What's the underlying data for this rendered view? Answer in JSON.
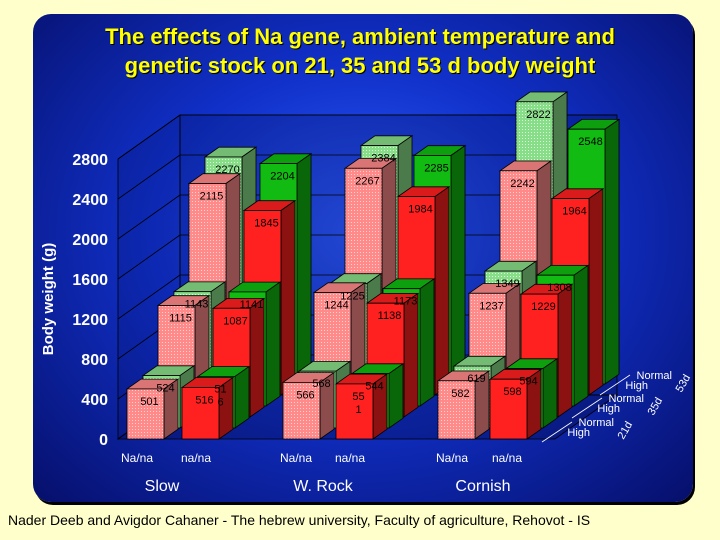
{
  "title_line1": "The effects of Na gene, ambient temperature and",
  "title_line2": "genetic stock on 21, 35 and 53 d body weight",
  "footer": "Nader Deeb and Avigdor Cahaner - The hebrew university, Faculty of agriculture, Rehovot - IS",
  "colors": {
    "background": "#ffffcc",
    "panel": "#1030c8",
    "title": "#ffff00",
    "axis_text": "#ffffff",
    "red_bar": "#ff2020",
    "pink_bar": "#ff8a8a",
    "green_bar": "#11bb11",
    "light_green_bar": "#88dd88"
  },
  "chart_data": {
    "type": "bar",
    "ylabel": "Body weight (g)",
    "ylim": [
      0,
      2800
    ],
    "yticks": [
      "0",
      "400",
      "800",
      "1200",
      "1600",
      "2000",
      "2400",
      "2800"
    ],
    "groups": [
      {
        "name": "Slow",
        "subgroups": [
          "Na/na",
          "na/na"
        ]
      },
      {
        "name": "W. Rock",
        "subgroups": [
          "Na/na",
          "na/na"
        ]
      },
      {
        "name": "Cornish",
        "subgroups": [
          "Na/na",
          "na/na"
        ]
      }
    ],
    "series": [
      {
        "name": "Normal 53d",
        "age": "53d",
        "temp": "Normal",
        "values": [
          2270,
          2204,
          2384,
          2285,
          2822,
          2548
        ],
        "labels": [
          "2270",
          "2204",
          "2384",
          "2285",
          "2822",
          "2548"
        ]
      },
      {
        "name": "High 53d",
        "age": "53d",
        "temp": "High",
        "values": [
          2115,
          1845,
          2267,
          1984,
          2242,
          1964
        ],
        "labels": [
          "2115",
          "1845",
          "2267",
          "1984",
          "2242",
          "1964"
        ]
      },
      {
        "name": "Normal 35d",
        "age": "35d",
        "temp": "Normal",
        "values": [
          1143,
          1141,
          1225,
          1173,
          1349,
          1308
        ],
        "labels": [
          "1143",
          "1141",
          "1225",
          "1173",
          "1349",
          "1308"
        ]
      },
      {
        "name": "High 35d",
        "age": "35d",
        "temp": "High",
        "values": [
          1115,
          1087,
          1244,
          1138,
          1237,
          1229
        ],
        "labels": [
          "1115",
          "1087",
          "1244",
          "1138",
          "1237",
          "1229"
        ]
      },
      {
        "name": "Normal 21d",
        "age": "21d",
        "temp": "Normal",
        "values": [
          524,
          516,
          568,
          544,
          619,
          594
        ],
        "labels": [
          "524",
          "51\n6",
          "568",
          "544",
          "619",
          "594"
        ]
      },
      {
        "name": "High 21d",
        "age": "21d",
        "temp": "High",
        "values": [
          501,
          516,
          566,
          551,
          582,
          598
        ],
        "labels": [
          "501",
          "516",
          "566",
          "55\n1",
          "582",
          "598"
        ]
      }
    ],
    "depth_labels": [
      {
        "age": "53d",
        "normal": "Normal",
        "high": "High"
      },
      {
        "age": "35d",
        "normal": "Normal",
        "high": "High"
      },
      {
        "age": "21d",
        "normal": "Normal",
        "high": "High"
      }
    ],
    "grid": true
  }
}
